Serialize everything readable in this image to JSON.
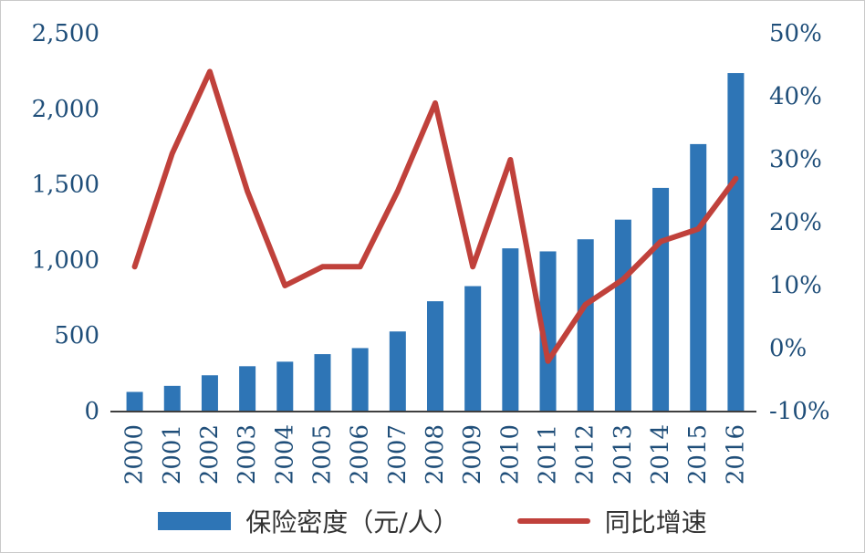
{
  "colors": {
    "bar": "#2E75B6",
    "line": "#C0413B",
    "axis_text": "#1F4E79",
    "axis_line": "#3F3F3F",
    "legend_text": "#333333",
    "frame_border": "#C9C9C9"
  },
  "chart_data": {
    "type": "bar+line combo",
    "title": "",
    "categories": [
      "2000",
      "2001",
      "2002",
      "2003",
      "2004",
      "2005",
      "2006",
      "2007",
      "2008",
      "2009",
      "2010",
      "2011",
      "2012",
      "2013",
      "2014",
      "2015",
      "2016"
    ],
    "series": [
      {
        "name": "保险密度（元/人）",
        "type": "bar",
        "axis": "left",
        "color": "#2E75B6",
        "values": [
          130,
          170,
          240,
          300,
          330,
          380,
          420,
          530,
          730,
          830,
          1080,
          1060,
          1140,
          1270,
          1480,
          1770,
          2240
        ]
      },
      {
        "name": "同比增速",
        "type": "line",
        "axis": "right",
        "color": "#C0413B",
        "values": [
          13,
          31,
          44,
          25,
          10,
          13,
          13,
          25,
          39,
          13,
          30,
          -2,
          7,
          11,
          17,
          19,
          27
        ]
      }
    ],
    "left_axis": {
      "min": 0,
      "max": 2500,
      "tick_step": 500,
      "tick_labels": [
        "0",
        "500",
        "1,000",
        "1,500",
        "2,000",
        "2,500"
      ]
    },
    "right_axis": {
      "min": -10,
      "max": 50,
      "tick_step": 10,
      "unit": "%",
      "tick_labels": [
        "-10%",
        "0%",
        "10%",
        "20%",
        "30%",
        "40%",
        "50%"
      ]
    },
    "grid": "off",
    "legend_position": "bottom",
    "legend": [
      {
        "label": "保险密度（元/人）",
        "swatch": "rect",
        "color": "#2E75B6"
      },
      {
        "label": "同比增速",
        "swatch": "line",
        "color": "#C0413B"
      }
    ]
  }
}
